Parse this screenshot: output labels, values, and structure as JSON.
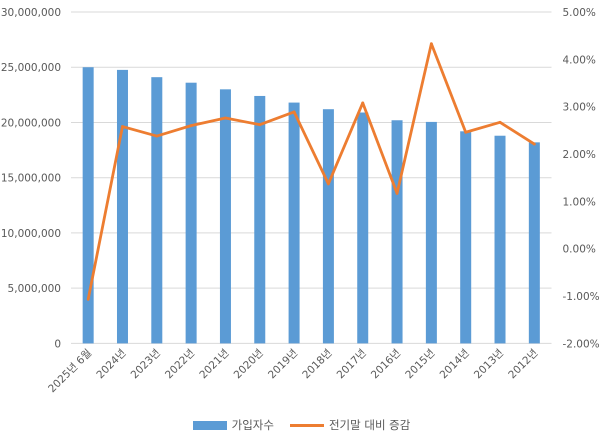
{
  "chart_data": {
    "type": "bar+line",
    "categories": [
      "2025년 6월",
      "2024년",
      "2023년",
      "2022년",
      "2021년",
      "2020년",
      "2019년",
      "2018년",
      "2017년",
      "2016년",
      "2015년",
      "2014년",
      "2013년",
      "2012년"
    ],
    "series": [
      {
        "name": "가입자수",
        "type": "bar",
        "axis": "left",
        "color": "#5B9BD5",
        "values": [
          25000000,
          24760000,
          24100000,
          23600000,
          23000000,
          22400000,
          21800000,
          21200000,
          20900000,
          20200000,
          20050000,
          19200000,
          18800000,
          18200000
        ]
      },
      {
        "name": "전기말 대비 증감",
        "type": "line",
        "axis": "right",
        "color": "#ED7D31",
        "values": [
          -1.07,
          2.58,
          2.38,
          2.6,
          2.76,
          2.62,
          2.89,
          1.37,
          3.08,
          1.17,
          4.33,
          2.46,
          2.67,
          2.21
        ]
      }
    ],
    "left_axis": {
      "ylim": [
        0,
        30000000
      ],
      "ticks": [
        "0",
        "5,000,000",
        "10,000,000",
        "15,000,000",
        "20,000,000",
        "25,000,000",
        "30,000,000"
      ]
    },
    "right_axis": {
      "ylim": [
        -2,
        5
      ],
      "ticks": [
        "-2.00%",
        "-1.00%",
        "0.00%",
        "1.00%",
        "2.00%",
        "3.00%",
        "4.00%",
        "5.00%"
      ]
    },
    "grid": true,
    "legend_position": "bottom"
  }
}
